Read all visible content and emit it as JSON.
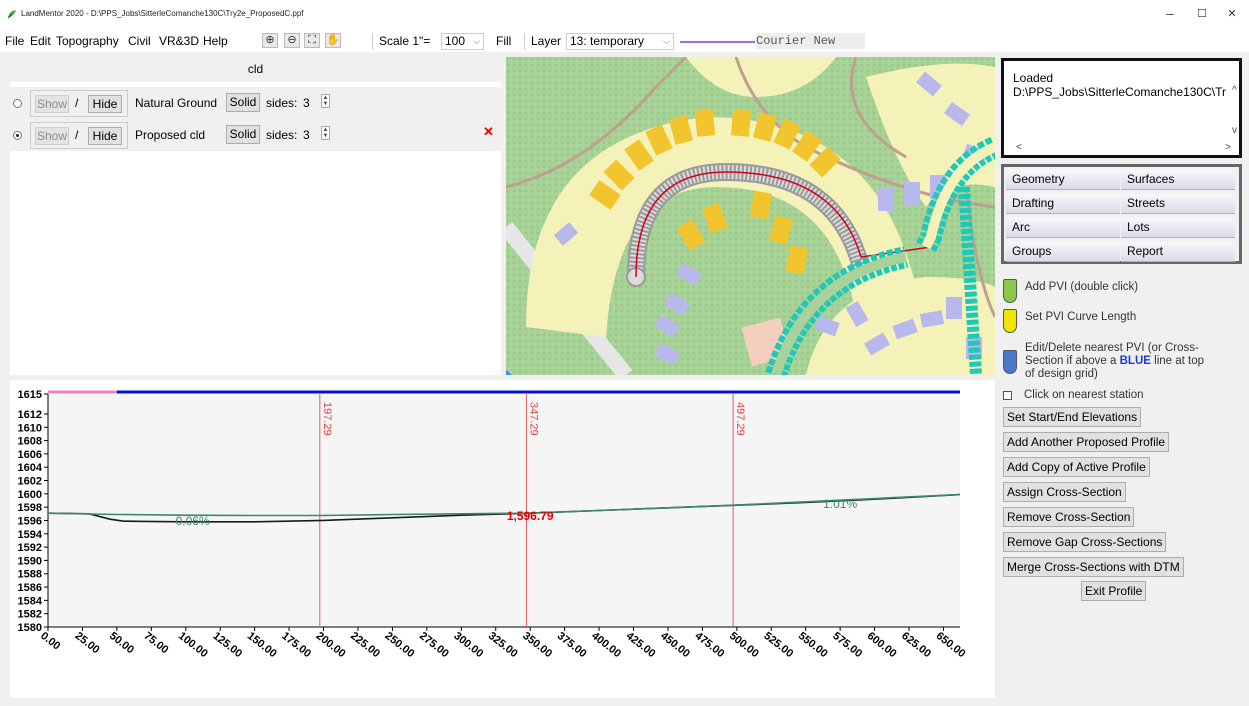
{
  "window": {
    "title": "LandMentor 2020 - D:\\PPS_Jobs\\SitterleComanche130C\\Try2e_ProposedC.ppf",
    "minimize": "–",
    "maximize": "☐",
    "close": "✕"
  },
  "menu": [
    "File",
    "Edit",
    "Topography",
    "Civil",
    "VR&3D",
    "Help"
  ],
  "toolbar": {
    "scale_label": "Scale 1\"=",
    "scale_value": "100",
    "fill_label": "Fill",
    "layer_label": "Layer",
    "layer_value": "13: temporary",
    "font_name": "Courier New",
    "line_color": "#a070d8"
  },
  "surfaces": {
    "header": "cld",
    "rows": [
      {
        "show": "Show",
        "slash": "/",
        "hide": "Hide",
        "name": "Natural Ground",
        "solid": "Solid",
        "sides_label": "sides:",
        "sides": "3",
        "selected": false
      },
      {
        "show": "Show",
        "slash": "/",
        "hide": "Hide",
        "name": "Proposed cld",
        "solid": "Solid",
        "sides_label": "sides:",
        "sides": "3",
        "selected": true
      }
    ]
  },
  "log": {
    "line1": "Loaded",
    "line2": "D:\\PPS_Jobs\\SitterleComanche130C\\Tr"
  },
  "tabs": [
    {
      "label": "Geometry"
    },
    {
      "label": "Surfaces"
    },
    {
      "label": "Drafting"
    },
    {
      "label": "Streets"
    },
    {
      "label": "Arc"
    },
    {
      "label": "Lots"
    },
    {
      "label": "Groups"
    },
    {
      "label": "Report"
    }
  ],
  "tools": [
    {
      "label": "Add PVI (double click)",
      "color": "#8cc84b"
    },
    {
      "label": "Set PVI Curve Length",
      "color": "#f2e600"
    },
    {
      "label": "Edit/Delete nearest PVI (or Cross-",
      "label2_pre": "Section if above a ",
      "label2_blue": "BLUE",
      "label2_post": " line at top",
      "label3": "of design grid)",
      "color": "#4a78c8"
    }
  ],
  "click_station_label": "Click on nearest station",
  "actions": [
    "Set Start/End Elevations",
    "Add Another Proposed Profile",
    "Add Copy of Active Profile",
    "Assign Cross-Section",
    "Remove Cross-Section",
    "Remove Gap Cross-Sections",
    "Merge Cross-Sections with DTM",
    "Exit Profile"
  ],
  "chart_data": {
    "type": "line",
    "xlim": [
      0,
      662
    ],
    "ylim": [
      1580,
      1615
    ],
    "x_ticks": [
      "0.00",
      "25.00",
      "50.00",
      "75.00",
      "100.00",
      "125.00",
      "150.00",
      "175.00",
      "200.00",
      "225.00",
      "250.00",
      "275.00",
      "300.00",
      "325.00",
      "350.00",
      "375.00",
      "400.00",
      "425.00",
      "450.00",
      "475.00",
      "500.00",
      "525.00",
      "550.00",
      "575.00",
      "600.00",
      "625.00",
      "650.00"
    ],
    "y_ticks": [
      "1615",
      "1612",
      "1610",
      "1608",
      "1606",
      "1604",
      "1602",
      "1600",
      "1598",
      "1596",
      "1594",
      "1592",
      "1590",
      "1588",
      "1586",
      "1584",
      "1582",
      "1580"
    ],
    "pvi_stations": [
      {
        "x": 197.29,
        "label": "197.29"
      },
      {
        "x": 347.29,
        "label": "347.29"
      },
      {
        "x": 497.29,
        "label": "497.29"
      }
    ],
    "series": [
      {
        "name": "Natural Ground",
        "color": "#1a1a1a",
        "x": [
          0,
          30,
          45,
          55,
          70,
          100,
          150,
          200,
          250,
          300,
          350,
          400,
          450,
          500,
          550,
          600,
          662
        ],
        "y": [
          1597.1,
          1597.0,
          1596.2,
          1595.9,
          1595.85,
          1595.8,
          1595.8,
          1596.0,
          1596.4,
          1596.8,
          1597.1,
          1597.5,
          1597.9,
          1598.3,
          1598.7,
          1599.2,
          1599.9
        ]
      },
      {
        "name": "Proposed cld",
        "color": "#3a8a6a",
        "x": [
          0,
          50,
          100,
          150,
          197.29,
          250,
          300,
          347.29,
          400,
          450,
          497.29,
          550,
          600,
          662
        ],
        "y": [
          1597.1,
          1596.9,
          1596.8,
          1596.75,
          1596.75,
          1596.9,
          1597.0,
          1597.1,
          1597.5,
          1597.9,
          1598.3,
          1598.8,
          1599.3,
          1599.9
        ]
      }
    ],
    "annotations": [
      {
        "x": 350,
        "y": 1596.79,
        "text": "1,596.79",
        "color": "#e00000"
      },
      {
        "x": 105,
        "y": 1596.1,
        "text": "0.06%",
        "color": "#3a8a6a"
      },
      {
        "x": 575,
        "y": 1598.6,
        "text": "1.01%",
        "color": "#3a8a6a"
      }
    ],
    "station_bar": {
      "pink_end": 50,
      "blue_end": 662
    },
    "grid": false
  }
}
